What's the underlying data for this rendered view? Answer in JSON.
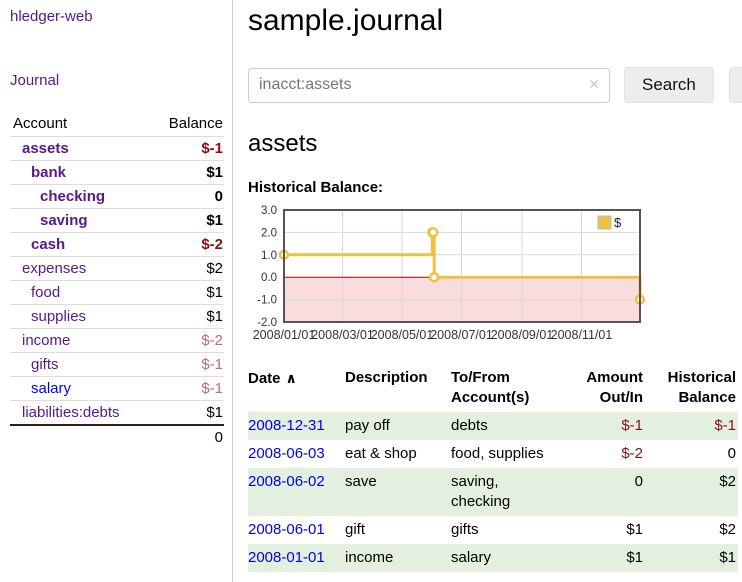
{
  "app": {
    "title": "hledger-web",
    "nav_journal": "Journal"
  },
  "sidebar": {
    "headers": {
      "account": "Account",
      "balance": "Balance"
    },
    "accounts": [
      {
        "name": "assets",
        "level": 0,
        "bold": true,
        "link_color": "purple",
        "balance": "$-1",
        "balance_style": "neg-strong"
      },
      {
        "name": "bank",
        "level": 1,
        "bold": true,
        "link_color": "purple",
        "balance": "$1",
        "balance_style": "pos"
      },
      {
        "name": "checking",
        "level": 2,
        "bold": true,
        "link_color": "purple",
        "balance": "0",
        "balance_style": "pos"
      },
      {
        "name": "saving",
        "level": 2,
        "bold": true,
        "link_color": "purple",
        "balance": "$1",
        "balance_style": "pos"
      },
      {
        "name": "cash",
        "level": 1,
        "bold": true,
        "link_color": "purple",
        "balance": "$-2",
        "balance_style": "neg-strong"
      },
      {
        "name": "expenses",
        "level": 0,
        "bold": false,
        "link_color": "purple",
        "balance": "$2",
        "balance_style": "pos"
      },
      {
        "name": "food",
        "level": 1,
        "bold": false,
        "link_color": "purple",
        "balance": "$1",
        "balance_style": "pos"
      },
      {
        "name": "supplies",
        "level": 1,
        "bold": false,
        "link_color": "purple",
        "balance": "$1",
        "balance_style": "pos"
      },
      {
        "name": "income",
        "level": 0,
        "bold": false,
        "link_color": "purple",
        "balance": "$-2",
        "balance_style": "neg-soft"
      },
      {
        "name": "gifts",
        "level": 1,
        "bold": false,
        "link_color": "purple",
        "balance": "$-1",
        "balance_style": "neg-soft"
      },
      {
        "name": "salary",
        "level": 1,
        "bold": false,
        "link_color": "blue",
        "balance": "$-1",
        "balance_style": "neg-soft"
      },
      {
        "name": "liabilities:debts",
        "level": 0,
        "bold": false,
        "link_color": "purple",
        "balance": "$1",
        "balance_style": "pos"
      }
    ],
    "total": "0"
  },
  "header": {
    "title": "sample.journal"
  },
  "search": {
    "value": "inacct:assets",
    "clear_icon": "✕",
    "button": "Search",
    "help_button": "?"
  },
  "account_page": {
    "heading": "assets",
    "chart_label": "Historical Balance:"
  },
  "chart_data": {
    "type": "line",
    "title": "Historical Balance",
    "step": true,
    "series": [
      {
        "name": "$",
        "color": "#EDC240",
        "points": [
          [
            "2008-01-01",
            1
          ],
          [
            "2008-06-01",
            2
          ],
          [
            "2008-06-02",
            2
          ],
          [
            "2008-06-03",
            0
          ],
          [
            "2008-12-31",
            -1
          ]
        ]
      }
    ],
    "x_range": [
      "2008-01-01",
      "2008-12-31"
    ],
    "x_ticks": [
      "2008/01/01",
      "2008/03/01",
      "2008/05/01",
      "2008/07/01",
      "2008/09/01",
      "2008/11/01"
    ],
    "y_ticks": [
      3.0,
      2.0,
      1.0,
      0.0,
      -1.0,
      -2.0
    ],
    "ylim": [
      -2,
      3
    ],
    "grid": true,
    "negative_region_color": "#fbdcdc",
    "zero_line_color": "#a00000",
    "grid_color": "#d8d8d8",
    "frame_color": "#545454",
    "legend": {
      "label": "$",
      "position": "top-right"
    }
  },
  "register": {
    "columns": [
      {
        "lines": [
          "Date"
        ],
        "align": "left",
        "sort_icon": "∧"
      },
      {
        "lines": [
          "Description"
        ],
        "align": "left"
      },
      {
        "lines": [
          "To/From",
          "Account(s)"
        ],
        "align": "left"
      },
      {
        "lines": [
          "Amount",
          "Out/In"
        ],
        "align": "right"
      },
      {
        "lines": [
          "Historical",
          "Balance"
        ],
        "align": "right"
      }
    ],
    "rows": [
      {
        "date": "2008-12-31",
        "description": "pay off",
        "accounts": "debts",
        "amount": "$-1",
        "amount_neg": true,
        "balance": "$-1",
        "balance_neg": true,
        "shaded": true
      },
      {
        "date": "2008-06-03",
        "description": "eat & shop",
        "accounts": "food, supplies",
        "amount": "$-2",
        "amount_neg": true,
        "balance": "0",
        "balance_neg": false,
        "shaded": false
      },
      {
        "date": "2008-06-02",
        "description": "save",
        "accounts": "saving, checking",
        "amount": "0",
        "amount_neg": false,
        "balance": "$2",
        "balance_neg": false,
        "shaded": true
      },
      {
        "date": "2008-06-01",
        "description": "gift",
        "accounts": "gifts",
        "amount": "$1",
        "amount_neg": false,
        "balance": "$2",
        "balance_neg": false,
        "shaded": false
      },
      {
        "date": "2008-01-01",
        "description": "income",
        "accounts": "salary",
        "amount": "$1",
        "amount_neg": false,
        "balance": "$1",
        "balance_neg": false,
        "shaded": true
      }
    ]
  }
}
